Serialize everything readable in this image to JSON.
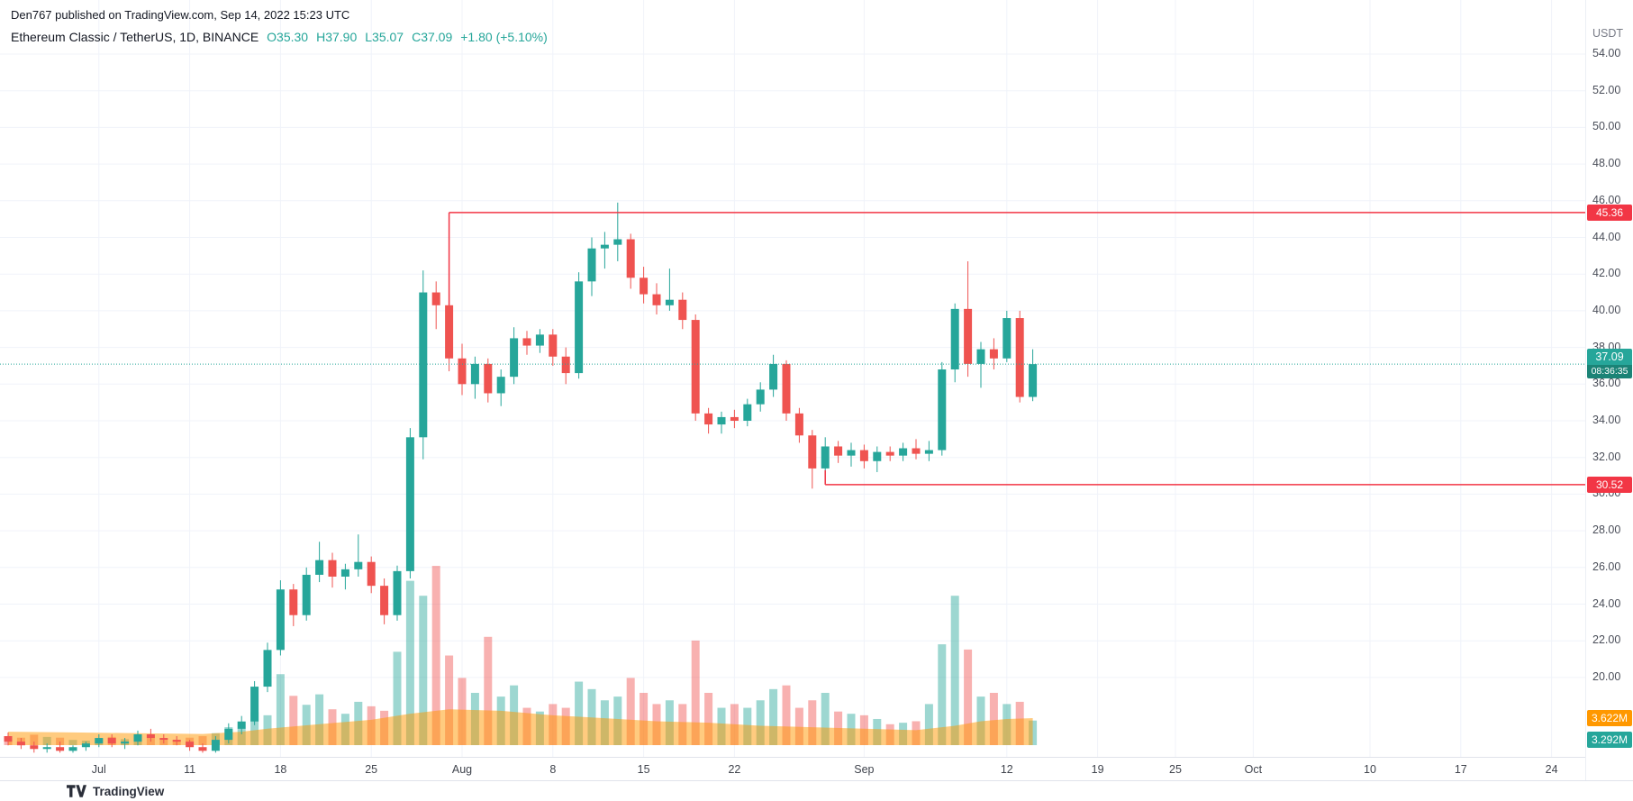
{
  "attribution": "Den767 published on TradingView.com, Sep 14, 2022 15:23 UTC",
  "header": {
    "symbol": "Ethereum Classic / TetherUS, 1D, BINANCE",
    "ohlc": {
      "o": "O35.30",
      "h": "H37.90",
      "l": "L35.07",
      "c": "C37.09",
      "change": "+1.80 (+5.10%)"
    }
  },
  "axis": {
    "currency": "USDT",
    "price_labels": [
      54,
      52,
      50,
      48,
      46,
      44,
      42,
      40,
      38,
      36,
      34,
      32,
      30,
      28,
      26,
      24,
      22,
      20
    ],
    "time_labels": [
      {
        "label": "Jul",
        "index": 7
      },
      {
        "label": "11",
        "index": 14
      },
      {
        "label": "18",
        "index": 21
      },
      {
        "label": "25",
        "index": 28
      },
      {
        "label": "Aug",
        "index": 35
      },
      {
        "label": "8",
        "index": 42
      },
      {
        "label": "15",
        "index": 49
      },
      {
        "label": "22",
        "index": 56
      },
      {
        "label": "Sep",
        "index": 66
      },
      {
        "label": "12",
        "index": 77
      },
      {
        "label": "19",
        "index": 84
      },
      {
        "label": "25",
        "index": 90
      },
      {
        "label": "Oct",
        "index": 96
      },
      {
        "label": "10",
        "index": 105
      },
      {
        "label": "17",
        "index": 112
      },
      {
        "label": "24",
        "index": 119
      }
    ]
  },
  "labels": {
    "high_line": "45.36",
    "low_line": "30.52",
    "last_price": "37.09",
    "countdown": "08:36:35",
    "volume_ma": "3.622M",
    "volume": "3.292M"
  },
  "colors": {
    "up": "#26a69a",
    "down": "#ef5350",
    "ray": "#f23645",
    "volume_up": "rgba(38,166,154,0.45)",
    "volume_down": "rgba(239,83,80,0.45)",
    "volume_ma_area": "rgba(255,152,0,0.5)",
    "volume_ma_tag": "#ff9800",
    "countdown_bg": "#1b8376",
    "grid": "#f0f3fa",
    "text": "#131722",
    "axis_text": "#4a4e59"
  },
  "footer": {
    "brand": "TradingView"
  },
  "chart_data": {
    "type": "candlestick_with_volume",
    "title": "Ethereum Classic / TetherUS, 1D, BINANCE",
    "interval": "1D",
    "price_axis_range": [
      14.5,
      55.0
    ],
    "grid_step": 2,
    "last_price": 37.09,
    "columns": [
      "date",
      "open",
      "high",
      "low",
      "close",
      "volume_m"
    ],
    "candles": [
      [
        "2022-06-27",
        16.8,
        17.0,
        16.3,
        16.5,
        1.2
      ],
      [
        "2022-06-28",
        16.5,
        16.7,
        16.1,
        16.3,
        1.0
      ],
      [
        "2022-06-29",
        16.3,
        16.5,
        15.9,
        16.1,
        1.4
      ],
      [
        "2022-06-30",
        16.1,
        16.4,
        15.9,
        16.2,
        1.1
      ],
      [
        "2022-07-01",
        16.2,
        16.5,
        15.9,
        16.0,
        1.0
      ],
      [
        "2022-07-02",
        16.0,
        16.3,
        15.9,
        16.2,
        0.7
      ],
      [
        "2022-07-03",
        16.2,
        16.5,
        16.0,
        16.4,
        0.6
      ],
      [
        "2022-07-04",
        16.4,
        16.9,
        16.2,
        16.7,
        0.9
      ],
      [
        "2022-07-05",
        16.7,
        16.9,
        16.2,
        16.4,
        1.1
      ],
      [
        "2022-07-06",
        16.4,
        16.7,
        16.1,
        16.5,
        0.8
      ],
      [
        "2022-07-07",
        16.5,
        17.1,
        16.3,
        16.9,
        1.2
      ],
      [
        "2022-07-08",
        16.9,
        17.2,
        16.5,
        16.7,
        1.0
      ],
      [
        "2022-07-09",
        16.7,
        16.9,
        16.4,
        16.6,
        0.7
      ],
      [
        "2022-07-10",
        16.6,
        16.8,
        16.3,
        16.5,
        0.6
      ],
      [
        "2022-07-11",
        16.5,
        16.6,
        16.0,
        16.2,
        1.0
      ],
      [
        "2022-07-12",
        16.2,
        16.4,
        15.9,
        16.0,
        1.2
      ],
      [
        "2022-07-13",
        16.0,
        16.8,
        15.9,
        16.6,
        1.6
      ],
      [
        "2022-07-14",
        16.6,
        17.5,
        16.4,
        17.2,
        2.4
      ],
      [
        "2022-07-15",
        17.2,
        17.9,
        16.9,
        17.6,
        2.2
      ],
      [
        "2022-07-16",
        17.6,
        19.8,
        17.4,
        19.5,
        4.4
      ],
      [
        "2022-07-17",
        19.5,
        21.9,
        19.2,
        21.5,
        4.0
      ],
      [
        "2022-07-18",
        21.5,
        25.3,
        21.2,
        24.8,
        9.5
      ],
      [
        "2022-07-19",
        24.8,
        25.1,
        22.8,
        23.4,
        6.6
      ],
      [
        "2022-07-20",
        23.4,
        26.0,
        23.1,
        25.6,
        5.4
      ],
      [
        "2022-07-21",
        25.6,
        27.4,
        25.2,
        26.4,
        6.8
      ],
      [
        "2022-07-22",
        26.4,
        26.8,
        24.9,
        25.5,
        4.8
      ],
      [
        "2022-07-23",
        25.5,
        26.2,
        24.8,
        25.9,
        4.2
      ],
      [
        "2022-07-24",
        25.9,
        27.8,
        25.5,
        26.3,
        5.8
      ],
      [
        "2022-07-25",
        26.3,
        26.6,
        24.6,
        25.0,
        5.2
      ],
      [
        "2022-07-26",
        25.0,
        25.4,
        22.9,
        23.4,
        4.6
      ],
      [
        "2022-07-27",
        23.4,
        26.1,
        23.1,
        25.8,
        12.5
      ],
      [
        "2022-07-28",
        25.8,
        33.6,
        25.4,
        33.1,
        22.0
      ],
      [
        "2022-07-29",
        33.1,
        42.2,
        31.9,
        41.0,
        20.0
      ],
      [
        "2022-07-30",
        41.0,
        41.6,
        39.0,
        40.3,
        24.0
      ],
      [
        "2022-07-31",
        40.3,
        40.9,
        36.7,
        37.4,
        12.0
      ],
      [
        "2022-08-01",
        37.4,
        38.2,
        35.4,
        36.0,
        9.0
      ],
      [
        "2022-08-02",
        36.0,
        37.5,
        35.2,
        37.1,
        7.0
      ],
      [
        "2022-08-03",
        37.1,
        37.4,
        35.0,
        35.5,
        14.5
      ],
      [
        "2022-08-04",
        35.5,
        36.8,
        34.8,
        36.4,
        6.5
      ],
      [
        "2022-08-05",
        36.4,
        39.1,
        36.0,
        38.5,
        8.0
      ],
      [
        "2022-08-06",
        38.5,
        38.9,
        37.6,
        38.1,
        5.0
      ],
      [
        "2022-08-07",
        38.1,
        39.0,
        37.7,
        38.7,
        4.5
      ],
      [
        "2022-08-08",
        38.7,
        39.0,
        37.0,
        37.5,
        5.5
      ],
      [
        "2022-08-09",
        37.5,
        38.0,
        36.0,
        36.6,
        5.0
      ],
      [
        "2022-08-10",
        36.6,
        42.1,
        36.3,
        41.6,
        8.5
      ],
      [
        "2022-08-11",
        41.6,
        44.0,
        40.8,
        43.4,
        7.5
      ],
      [
        "2022-08-12",
        43.4,
        44.3,
        42.3,
        43.6,
        6.0
      ],
      [
        "2022-08-13",
        43.6,
        45.9,
        42.7,
        43.9,
        6.5
      ],
      [
        "2022-08-14",
        43.9,
        44.2,
        41.2,
        41.8,
        9.0
      ],
      [
        "2022-08-15",
        41.8,
        42.4,
        40.4,
        40.9,
        7.0
      ],
      [
        "2022-08-16",
        40.9,
        41.5,
        39.8,
        40.3,
        5.5
      ],
      [
        "2022-08-17",
        40.3,
        42.3,
        40.0,
        40.6,
        6.0
      ],
      [
        "2022-08-18",
        40.6,
        41.0,
        39.0,
        39.5,
        5.5
      ],
      [
        "2022-08-19",
        39.5,
        39.8,
        34.0,
        34.4,
        14.0
      ],
      [
        "2022-08-20",
        34.4,
        34.7,
        33.3,
        33.8,
        7.0
      ],
      [
        "2022-08-21",
        33.8,
        34.5,
        33.3,
        34.2,
        5.0
      ],
      [
        "2022-08-22",
        34.2,
        34.6,
        33.6,
        34.0,
        5.5
      ],
      [
        "2022-08-23",
        34.0,
        35.2,
        33.7,
        34.9,
        5.0
      ],
      [
        "2022-08-24",
        34.9,
        36.1,
        34.5,
        35.7,
        6.0
      ],
      [
        "2022-08-25",
        35.7,
        37.6,
        35.3,
        37.1,
        7.5
      ],
      [
        "2022-08-26",
        37.1,
        37.3,
        34.0,
        34.4,
        8.0
      ],
      [
        "2022-08-27",
        34.4,
        34.7,
        32.8,
        33.2,
        5.0
      ],
      [
        "2022-08-28",
        33.2,
        33.5,
        30.3,
        31.4,
        6.0
      ],
      [
        "2022-08-29",
        31.4,
        33.1,
        30.6,
        32.6,
        7.0
      ],
      [
        "2022-08-30",
        32.6,
        32.9,
        31.7,
        32.1,
        4.5
      ],
      [
        "2022-08-31",
        32.1,
        32.8,
        31.5,
        32.4,
        4.2
      ],
      [
        "2022-09-01",
        32.4,
        32.7,
        31.4,
        31.8,
        4.0
      ],
      [
        "2022-09-02",
        31.8,
        32.6,
        31.2,
        32.3,
        3.5
      ],
      [
        "2022-09-03",
        32.3,
        32.6,
        31.8,
        32.1,
        2.8
      ],
      [
        "2022-09-04",
        32.1,
        32.8,
        31.8,
        32.5,
        3.0
      ],
      [
        "2022-09-05",
        32.5,
        33.0,
        31.9,
        32.2,
        3.2
      ],
      [
        "2022-09-06",
        32.2,
        32.9,
        31.8,
        32.4,
        5.5
      ],
      [
        "2022-09-07",
        32.4,
        37.2,
        32.1,
        36.8,
        13.5
      ],
      [
        "2022-09-08",
        36.8,
        40.4,
        36.1,
        40.1,
        20.0
      ],
      [
        "2022-09-09",
        40.1,
        42.7,
        36.4,
        37.1,
        12.8
      ],
      [
        "2022-09-10",
        37.1,
        38.3,
        35.8,
        37.9,
        6.5
      ],
      [
        "2022-09-11",
        37.9,
        38.5,
        36.8,
        37.4,
        7.0
      ],
      [
        "2022-09-12",
        37.4,
        40.0,
        37.2,
        39.6,
        5.5
      ],
      [
        "2022-09-13",
        39.6,
        40.0,
        35.0,
        35.3,
        5.8
      ],
      [
        "2022-09-14",
        35.3,
        37.9,
        35.07,
        37.09,
        3.292
      ]
    ],
    "volume_ma_points": [
      [
        0,
        1.8
      ],
      [
        5,
        1.7
      ],
      [
        10,
        1.6
      ],
      [
        15,
        1.5
      ],
      [
        18,
        1.8
      ],
      [
        20,
        2.2
      ],
      [
        24,
        2.8
      ],
      [
        28,
        3.4
      ],
      [
        31,
        4.2
      ],
      [
        34,
        4.8
      ],
      [
        38,
        4.6
      ],
      [
        42,
        4.0
      ],
      [
        46,
        3.6
      ],
      [
        50,
        3.2
      ],
      [
        54,
        3.0
      ],
      [
        58,
        2.6
      ],
      [
        62,
        2.4
      ],
      [
        66,
        2.2
      ],
      [
        70,
        2.0
      ],
      [
        73,
        2.6
      ],
      [
        75,
        3.2
      ],
      [
        77,
        3.5
      ],
      [
        79,
        3.622
      ]
    ],
    "drawings": [
      {
        "type": "horizontal_ray",
        "price": 45.36,
        "start_index": 34,
        "tail_price": 40.3,
        "label": "45.36"
      },
      {
        "type": "horizontal_ray",
        "price": 30.52,
        "start_index": 63,
        "tail_price": 31.3,
        "label": "30.52"
      }
    ]
  }
}
